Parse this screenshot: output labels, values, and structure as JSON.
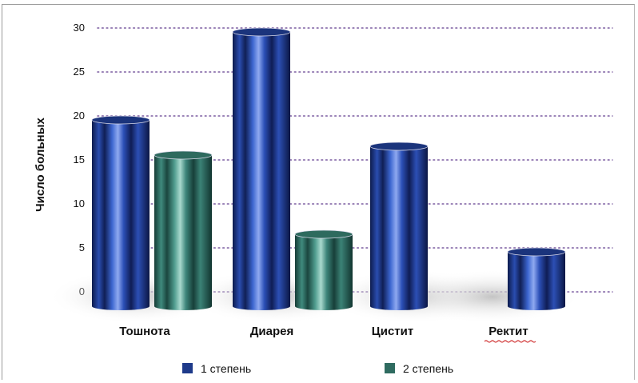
{
  "chart_data": {
    "type": "bar",
    "ylabel": "Число больных",
    "xlabel": "",
    "ylim": [
      0,
      30
    ],
    "yticks": [
      0,
      5,
      10,
      15,
      20,
      25,
      30
    ],
    "grid": true,
    "legend_position": "bottom",
    "categories": [
      "Тошнота",
      "Диарея",
      "Цистит",
      "Ректит"
    ],
    "series": [
      {
        "name": "1 степень",
        "color": "#1e3a8a",
        "values": [
          20,
          30,
          17,
          5
        ]
      },
      {
        "name": "2 степень",
        "color": "#2f6b60",
        "values": [
          16,
          7,
          0,
          0
        ]
      }
    ]
  }
}
